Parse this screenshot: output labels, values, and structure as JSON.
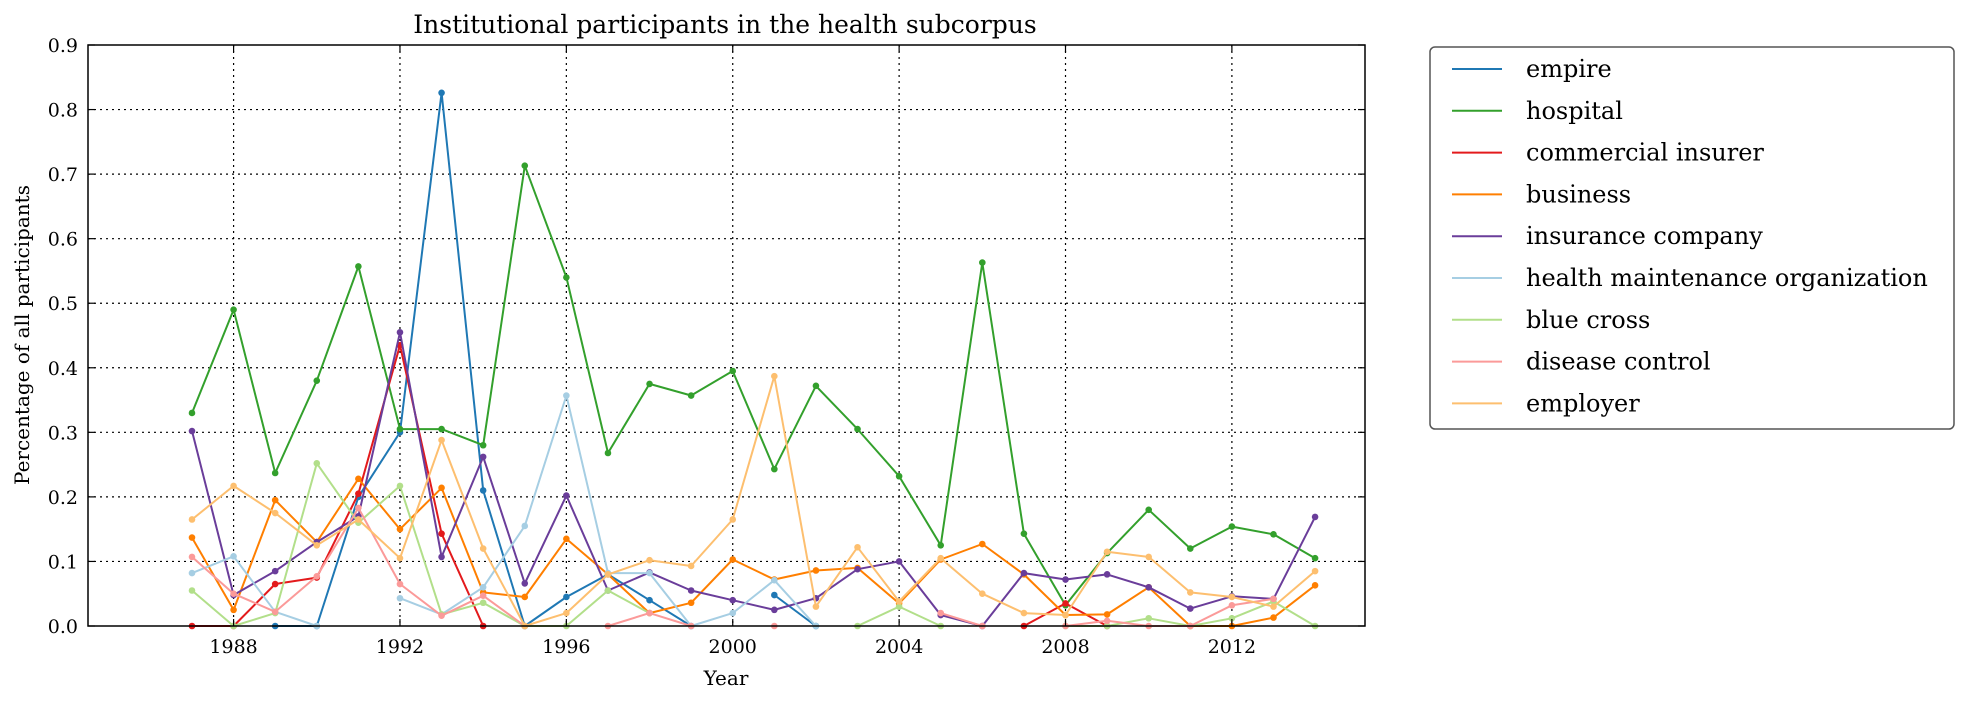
{
  "chart_data": {
    "type": "line",
    "title": "Institutional participants in the health subcorpus",
    "xlabel": "Year",
    "ylabel": "Percentage of all participants",
    "xlim": [
      1984.5,
      2015.2
    ],
    "ylim": [
      0,
      0.9
    ],
    "xticks": [
      1988,
      1992,
      1996,
      2000,
      2004,
      2008,
      2012
    ],
    "yticks": [
      0.0,
      0.1,
      0.2,
      0.3,
      0.4,
      0.5,
      0.6,
      0.7,
      0.8,
      0.9
    ],
    "grid": true,
    "legend_position": "outside-right",
    "x": [
      1987,
      1988,
      1989,
      1990,
      1991,
      1992,
      1993,
      1994,
      1995,
      1996,
      1997,
      1998,
      1999,
      2000,
      2001,
      2002,
      2003,
      2004,
      2005,
      2006,
      2007,
      2008,
      2009,
      2010,
      2011,
      2012,
      2013,
      2014
    ],
    "series": [
      {
        "name": "empire",
        "color": "#1f78b4",
        "values": [
          null,
          null,
          0.0,
          0.0,
          0.2,
          0.3,
          0.826,
          0.21,
          0.0,
          0.045,
          0.08,
          0.04,
          0.0,
          null,
          0.048,
          0.0,
          null,
          null,
          null,
          null,
          null,
          null,
          null,
          null,
          null,
          null,
          null,
          null
        ]
      },
      {
        "name": "hospital",
        "color": "#33a02c",
        "values": [
          0.33,
          0.49,
          0.237,
          0.38,
          0.557,
          0.305,
          0.305,
          0.28,
          0.713,
          0.54,
          0.268,
          0.375,
          0.357,
          0.395,
          0.243,
          0.372,
          0.305,
          0.232,
          0.125,
          0.563,
          0.143,
          0.032,
          0.113,
          0.18,
          0.12,
          0.154,
          0.142,
          0.105
        ]
      },
      {
        "name": "commercial insurer",
        "color": "#e31a1c",
        "values": [
          0.0,
          0.0,
          0.065,
          0.075,
          0.205,
          0.435,
          0.143,
          0.0,
          null,
          null,
          null,
          null,
          null,
          null,
          null,
          null,
          null,
          null,
          null,
          null,
          0.0,
          0.035,
          0.0,
          null,
          null,
          null,
          null,
          null
        ]
      },
      {
        "name": "business",
        "color": "#ff7f00",
        "values": [
          0.137,
          0.025,
          0.195,
          0.13,
          0.228,
          0.15,
          0.214,
          0.052,
          0.045,
          0.135,
          0.08,
          0.02,
          0.036,
          0.103,
          0.072,
          0.086,
          0.09,
          0.035,
          0.103,
          0.127,
          0.08,
          0.017,
          0.018,
          0.06,
          0.0,
          0.0,
          0.013,
          0.063
        ]
      },
      {
        "name": "insurance company",
        "color": "#6a3d9a",
        "values": [
          0.302,
          0.048,
          0.085,
          0.13,
          0.17,
          0.455,
          0.107,
          0.262,
          0.066,
          0.202,
          0.055,
          0.083,
          0.055,
          0.04,
          0.025,
          0.043,
          0.088,
          0.1,
          0.017,
          0.0,
          0.082,
          0.072,
          0.08,
          0.06,
          0.027,
          0.046,
          0.042,
          0.169
        ]
      },
      {
        "name": "health maintenance organization",
        "color": "#a6cee3",
        "values": [
          0.082,
          0.108,
          0.022,
          0.0,
          null,
          0.043,
          0.018,
          0.06,
          0.155,
          0.357,
          0.082,
          0.082,
          0.0,
          0.02,
          0.071,
          0.0,
          null,
          null,
          null,
          null,
          null,
          null,
          null,
          null,
          null,
          null,
          null,
          null
        ]
      },
      {
        "name": "blue cross",
        "color": "#b2df8a",
        "values": [
          0.055,
          0.0,
          0.02,
          0.252,
          0.16,
          0.217,
          0.018,
          0.036,
          0.0,
          0.0,
          0.055,
          0.02,
          null,
          null,
          null,
          null,
          0.0,
          0.03,
          0.0,
          null,
          null,
          0.0,
          0.0,
          0.012,
          0.0,
          0.012,
          0.038,
          0.0
        ]
      },
      {
        "name": "disease control",
        "color": "#fb9a99",
        "values": [
          0.107,
          0.05,
          0.022,
          0.077,
          0.183,
          0.065,
          0.016,
          0.047,
          0.0,
          null,
          0.0,
          0.02,
          0.0,
          null,
          0.0,
          null,
          null,
          null,
          0.02,
          0.0,
          null,
          0.0,
          0.008,
          0.0,
          0.0,
          0.032,
          0.042,
          null
        ]
      },
      {
        "name": "employer",
        "color": "#fdbf6f",
        "values": [
          0.165,
          0.217,
          0.175,
          0.125,
          0.165,
          0.105,
          0.288,
          0.12,
          0.0,
          0.02,
          0.08,
          0.102,
          0.093,
          0.165,
          0.387,
          0.03,
          0.122,
          0.038,
          0.105,
          0.05,
          0.02,
          0.017,
          0.115,
          0.107,
          0.052,
          0.045,
          0.03,
          0.085
        ]
      }
    ]
  }
}
